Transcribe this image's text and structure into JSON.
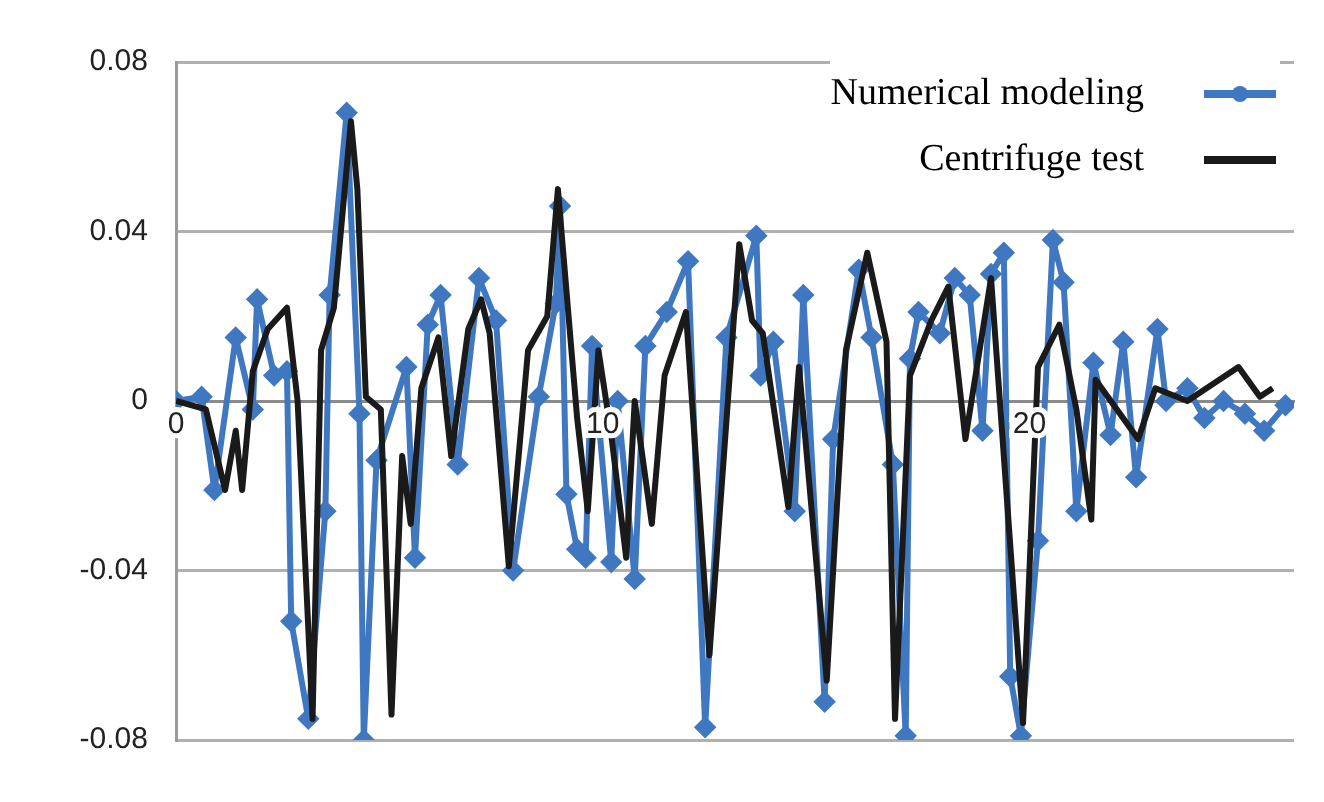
{
  "chart_data": {
    "type": "line",
    "xlim": [
      0,
      26.2
    ],
    "xticks": [
      0,
      10,
      20
    ],
    "ylim": [
      -0.08,
      0.08
    ],
    "yticks": [
      -0.08,
      -0.04,
      0,
      0.04,
      0.08
    ],
    "grid": "y",
    "legend": "top right",
    "series": [
      {
        "name": "Numerical modeling",
        "color": "#3f78c0",
        "marker": "diamond",
        "x": [
          0,
          0.6,
          0.9,
          1.4,
          1.8,
          1.9,
          2.3,
          2.6,
          2.7,
          3.1,
          3.5,
          3.6,
          4.0,
          4.3,
          4.4,
          4.7,
          5.4,
          5.6,
          5.9,
          6.2,
          6.6,
          7.1,
          7.5,
          7.9,
          8.5,
          8.9,
          9.0,
          9.15,
          9.4,
          9.6,
          9.75,
          10.2,
          10.35,
          10.75,
          11.0,
          11.5,
          12.0,
          12.4,
          12.9,
          13.6,
          13.7,
          14.0,
          14.5,
          14.7,
          15.2,
          15.4,
          16.0,
          16.3,
          16.8,
          17.1,
          17.2,
          17.4,
          17.9,
          18.25,
          18.6,
          18.9,
          19.1,
          19.4,
          19.55,
          19.8,
          20.2,
          20.55,
          20.8,
          21.1,
          21.5,
          21.9,
          22.2,
          22.5,
          23.0,
          23.2,
          23.7,
          24.1,
          24.55,
          25.05,
          25.5,
          26.0
        ],
        "values": [
          0,
          0.001,
          -0.021,
          0.015,
          -0.002,
          0.024,
          0.006,
          0.007,
          -0.052,
          -0.075,
          -0.026,
          0.025,
          0.068,
          -0.003,
          -0.08,
          -0.014,
          0.008,
          -0.037,
          0.018,
          0.025,
          -0.015,
          0.029,
          0.019,
          -0.04,
          0.001,
          0.023,
          0.046,
          -0.022,
          -0.035,
          -0.037,
          0.013,
          -0.038,
          0,
          -0.042,
          0.013,
          0.021,
          0.033,
          -0.077,
          0.015,
          0.039,
          0.006,
          0.014,
          -0.026,
          0.025,
          -0.071,
          -0.009,
          0.031,
          0.015,
          -0.015,
          -0.079,
          0.01,
          0.021,
          0.016,
          0.029,
          0.025,
          -0.007,
          0.03,
          0.035,
          -0.065,
          -0.079,
          -0.033,
          0.038,
          0.028,
          -0.026,
          0.009,
          -0.008,
          0.014,
          -0.018,
          0.017,
          0,
          0.003,
          -0.004,
          0,
          -0.003,
          -0.007,
          -0.001
        ]
      },
      {
        "name": "Centrifuge test",
        "color": "#1a1a1a",
        "marker": "none",
        "x": [
          0,
          0.7,
          1.15,
          1.4,
          1.55,
          1.8,
          2.15,
          2.6,
          2.85,
          3.2,
          3.4,
          3.7,
          4.1,
          4.25,
          4.45,
          4.8,
          5.05,
          5.3,
          5.5,
          5.75,
          6.15,
          6.45,
          6.85,
          7.15,
          7.35,
          7.8,
          8.25,
          8.7,
          8.95,
          9.4,
          9.65,
          9.9,
          10.2,
          10.55,
          10.75,
          11.15,
          11.45,
          11.95,
          12.5,
          13.2,
          13.5,
          13.75,
          14.35,
          14.6,
          15.25,
          15.7,
          16.2,
          16.65,
          16.85,
          17.2,
          17.7,
          18.1,
          18.5,
          19.1,
          19.85,
          20.2,
          20.7,
          21.1,
          21.45,
          21.55,
          22.05,
          22.55,
          22.95,
          23.7,
          24.9,
          25.4,
          25.7
        ],
        "values": [
          0,
          -0.002,
          -0.021,
          -0.007,
          -0.021,
          0.007,
          0.017,
          0.022,
          0,
          -0.075,
          0.012,
          0.022,
          0.066,
          0.05,
          0.001,
          -0.002,
          -0.074,
          -0.013,
          -0.029,
          0.003,
          0.015,
          -0.013,
          0.017,
          0.024,
          0.016,
          -0.039,
          0.012,
          0.02,
          0.05,
          -0.004,
          -0.026,
          0.012,
          -0.008,
          -0.037,
          0,
          -0.029,
          0.006,
          0.021,
          -0.06,
          0.037,
          0.019,
          0.016,
          -0.025,
          0.008,
          -0.066,
          0.012,
          0.035,
          0.014,
          -0.075,
          0.006,
          0.019,
          0.027,
          -0.009,
          0.029,
          -0.076,
          0.008,
          0.018,
          -0.002,
          -0.028,
          0.005,
          -0.002,
          -0.009,
          0.003,
          0,
          0.008,
          0.001,
          0.003
        ]
      }
    ]
  }
}
